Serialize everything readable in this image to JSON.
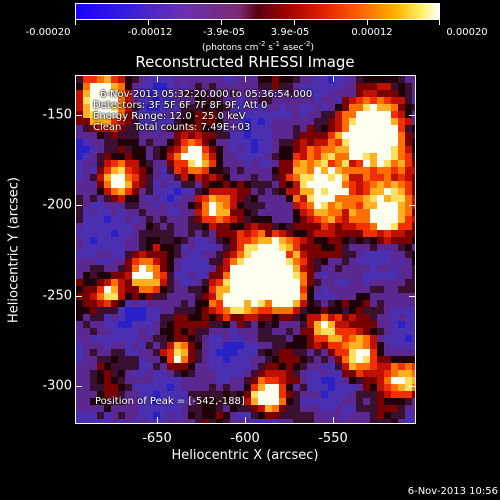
{
  "colorbar": {
    "tick_labels": [
      "-0.00020",
      "-0.00012",
      "-3.9e-05",
      "3.9e-05",
      "0.00012",
      "0.00020"
    ],
    "units_text": "(photons cm",
    "units_exp1": "-2",
    "units_mid": " s",
    "units_exp2": "-1",
    "units_end": " asec",
    "units_exp3": "-2",
    "units_close": ")",
    "colors": [
      "#1a00ff",
      "#6b30b0",
      "#5a0010",
      "#e02000",
      "#ffb000",
      "#ffffff"
    ]
  },
  "plot": {
    "title": "Reconstructed RHESSI Image",
    "xlabel": "Heliocentric X (arcsec)",
    "ylabel": "Heliocentric Y (arcsec)",
    "x_ticks": [
      "-650",
      "-600",
      "-550"
    ],
    "y_ticks": [
      "-150",
      "-200",
      "-250",
      "-300"
    ],
    "info": {
      "time_range": "6-Nov-2013 05:32:20.000 to 05:36:54.000",
      "detectors": "Detectors: 3F 5F 6F 7F 8F 9F, Att 0",
      "energy": "Energy Range: 12.0 - 25.0 keV",
      "method": "Clean    Total counts: 7.49E+03"
    },
    "peak_text": "Position of Peak = [-542,-188]"
  },
  "footer": {
    "date": "6-Nov-2013 10:56"
  }
}
